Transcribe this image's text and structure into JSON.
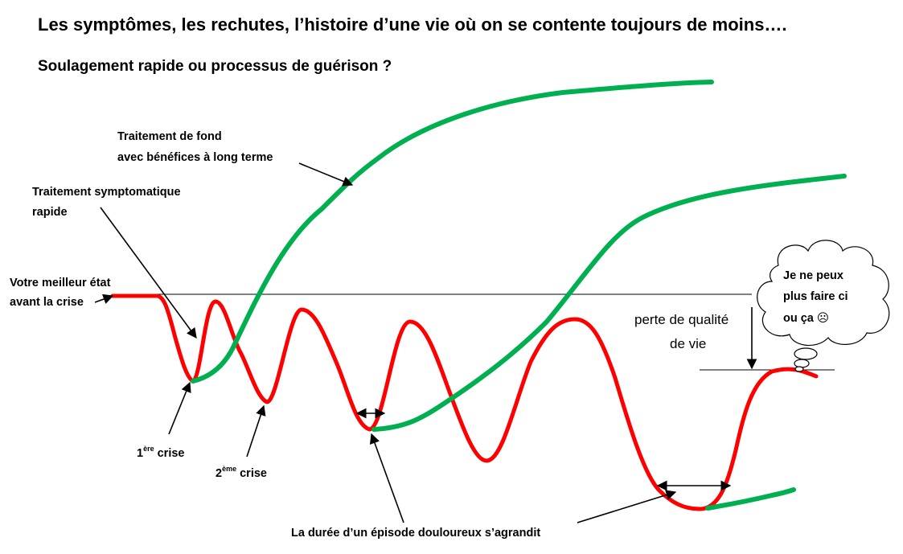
{
  "title": "Les symptômes, les rechutes, l’histoire d’une vie où on se contente toujours de moins….",
  "subtitle": "Soulagement rapide ou processus de guérison ?",
  "labels": {
    "best_state_line1": "Votre meilleur état",
    "best_state_line2": "avant la crise",
    "symptomatic_line1": "Traitement symptomatique",
    "symptomatic_line2": "rapide",
    "background_line1": "Traitement de fond",
    "background_line2": "avec bénéfices  à long terme",
    "first_crisis_num": "1",
    "first_crisis_sup": "ère",
    "first_crisis_word": " crise",
    "second_crisis_num": "2",
    "second_crisis_sup": "ème",
    "second_crisis_word": " crise",
    "quality_loss_line1": "perte de qualité",
    "quality_loss_line2": "de vie",
    "duration": "La durée d’un épisode douloureux s’agrandit",
    "thought_line1": "Je ne peux",
    "thought_line2": "plus faire ci",
    "thought_line3": "ou ça ☹"
  },
  "colors": {
    "symptom_curve": "#ff0000",
    "treatment_curve": "#00b050",
    "annotation": "#000000"
  }
}
